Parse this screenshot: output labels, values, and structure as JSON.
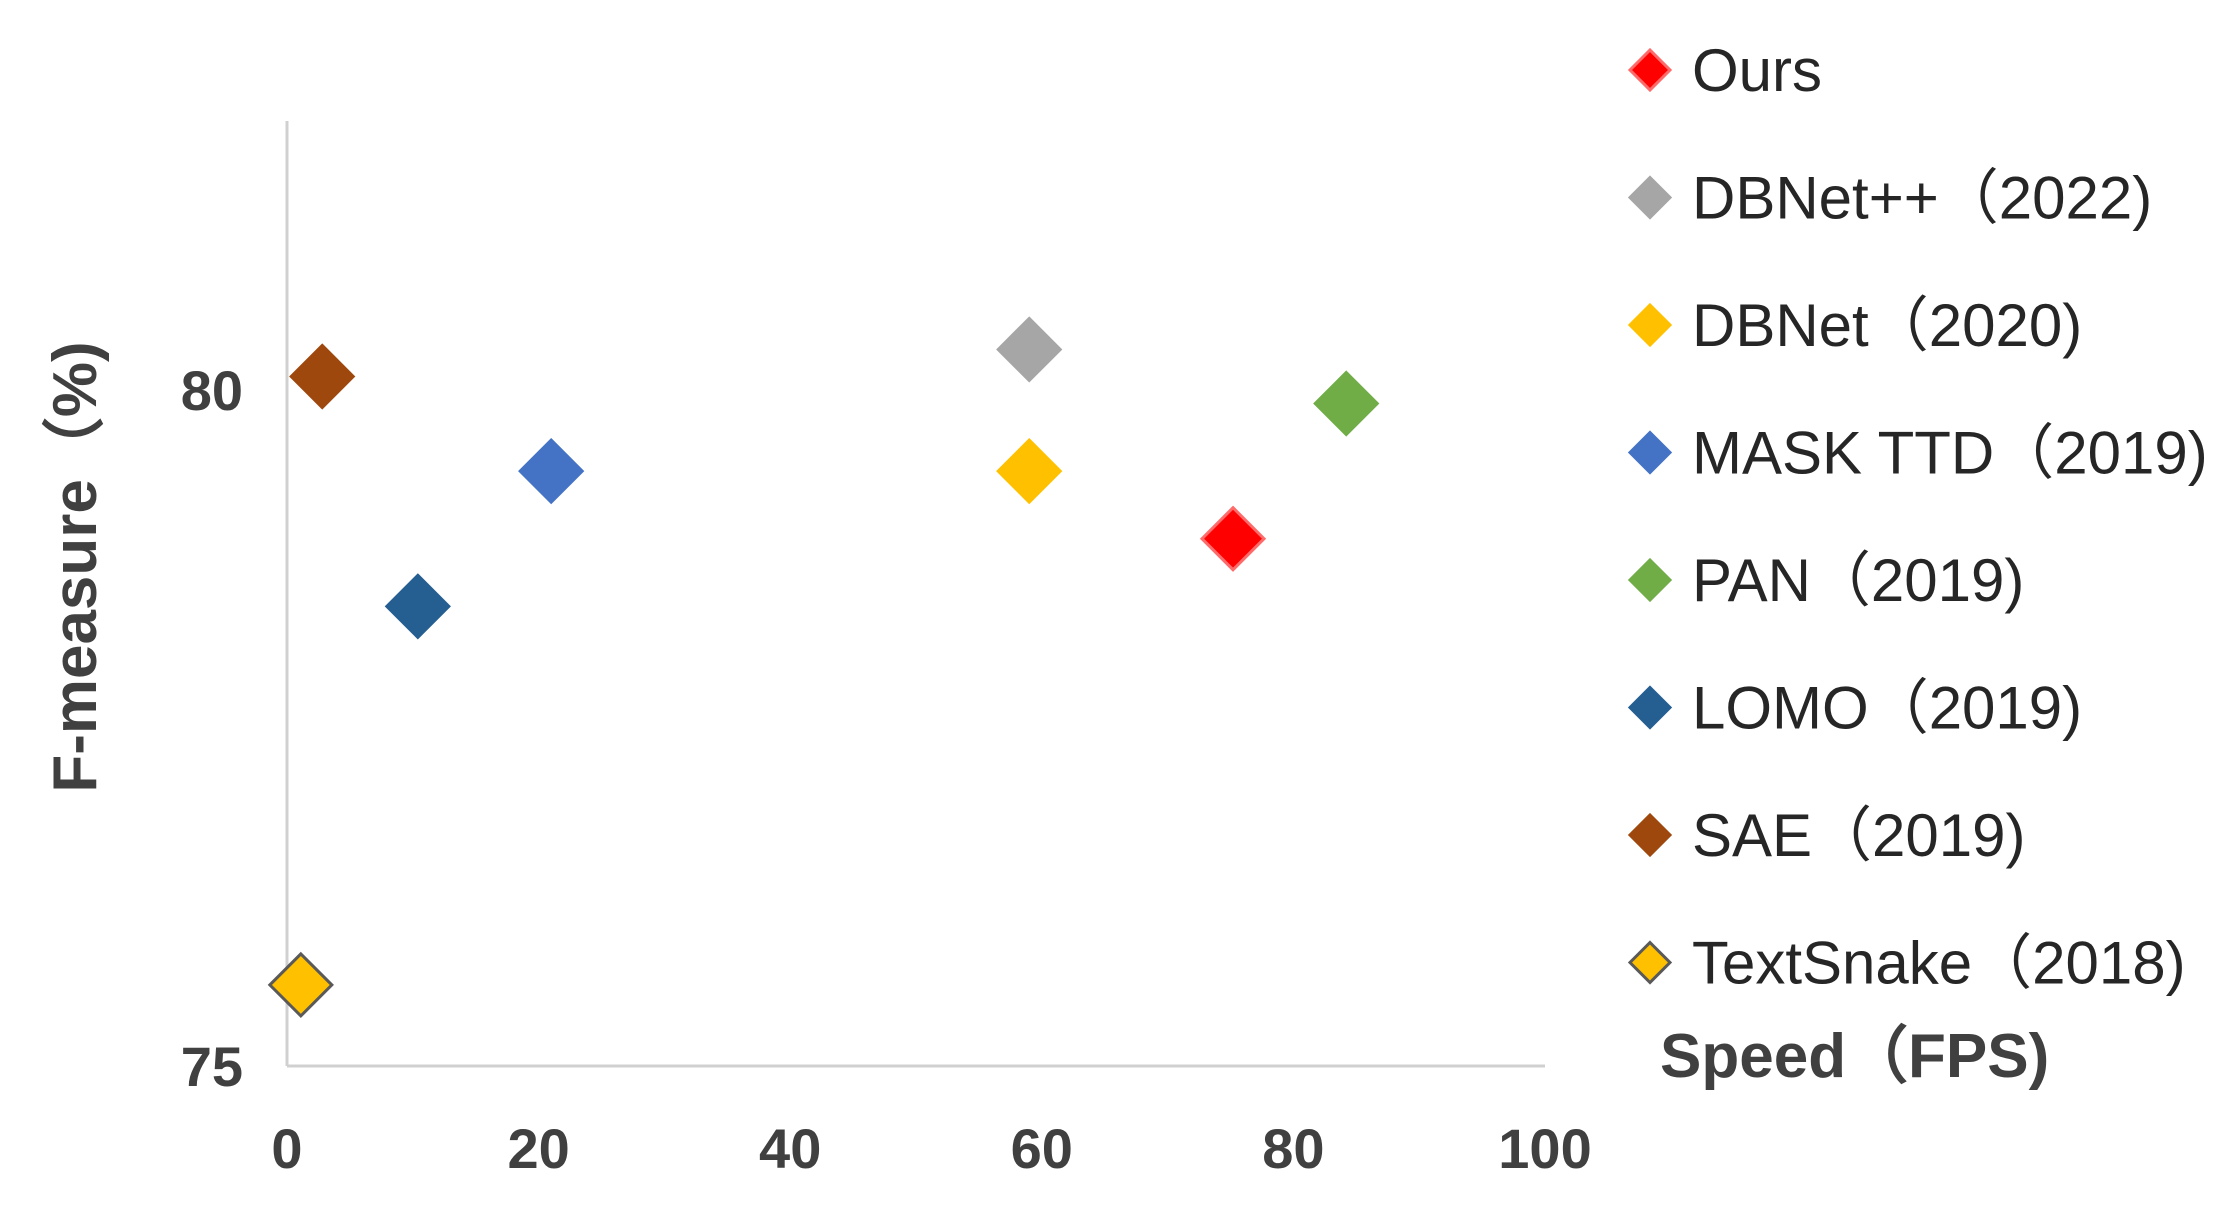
{
  "chart_data": {
    "type": "scatter",
    "title": "",
    "xlabel": "Speed（FPS)",
    "ylabel": "F-measure（%)",
    "xlim": [
      0,
      100
    ],
    "ylim": [
      75,
      82
    ],
    "x_ticks": [
      "0",
      "20",
      "40",
      "60",
      "80",
      "100"
    ],
    "y_ticks": [
      "75",
      "80"
    ],
    "grid": false,
    "legend_position": "right",
    "marker": "diamond",
    "series": [
      {
        "name": "Ours",
        "color": "#ff0000",
        "stroke": "#ff6a6a",
        "points": [
          {
            "x": 75.2,
            "y": 78.9
          }
        ]
      },
      {
        "name": "DBNet++（2022)",
        "color": "#a6a6a6",
        "stroke": "#a6a6a6",
        "points": [
          {
            "x": 59.0,
            "y": 80.3
          }
        ]
      },
      {
        "name": "DBNet（2020)",
        "color": "#ffc000",
        "stroke": "#ffc000",
        "points": [
          {
            "x": 59.0,
            "y": 79.4
          }
        ]
      },
      {
        "name": "MASK TTD（2019)",
        "color": "#4472c4",
        "stroke": "#4472c4",
        "points": [
          {
            "x": 21.0,
            "y": 79.4
          }
        ]
      },
      {
        "name": "PAN（2019)",
        "color": "#70ad47",
        "stroke": "#70ad47",
        "points": [
          {
            "x": 84.2,
            "y": 79.9
          }
        ]
      },
      {
        "name": "LOMO（2019)",
        "color": "#255e91",
        "stroke": "#255e91",
        "points": [
          {
            "x": 10.4,
            "y": 78.4
          }
        ]
      },
      {
        "name": "SAE（2019)",
        "color": "#9e480e",
        "stroke": "#9e480e",
        "points": [
          {
            "x": 2.8,
            "y": 80.1
          }
        ]
      },
      {
        "name": "TextSnake（2018)",
        "color": "#ffc000",
        "stroke": "#595959",
        "points": [
          {
            "x": 1.1,
            "y": 75.6
          }
        ]
      }
    ]
  }
}
